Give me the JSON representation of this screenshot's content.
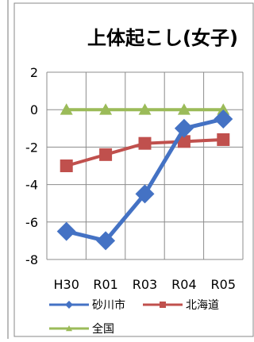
{
  "chart_data": {
    "type": "line",
    "title": "上体起こし(女子)",
    "categories": [
      "H30",
      "R01",
      "R03",
      "R04",
      "R05"
    ],
    "ylim": [
      -8,
      2
    ],
    "yticks": [
      2,
      0,
      -2,
      -4,
      -6,
      -8
    ],
    "grid": true,
    "legend_position": "bottom",
    "series": [
      {
        "name": "砂川市",
        "values": [
          -6.5,
          -7.0,
          -4.5,
          -1.0,
          -0.5
        ],
        "color": "#4472C4",
        "marker": "diamond"
      },
      {
        "name": "北海道",
        "values": [
          -3.0,
          -2.4,
          -1.8,
          -1.7,
          -1.6
        ],
        "color": "#C0504D",
        "marker": "square"
      },
      {
        "name": "全国",
        "values": [
          0,
          0,
          0,
          0,
          0
        ],
        "color": "#9BBB59",
        "marker": "triangle"
      }
    ]
  }
}
